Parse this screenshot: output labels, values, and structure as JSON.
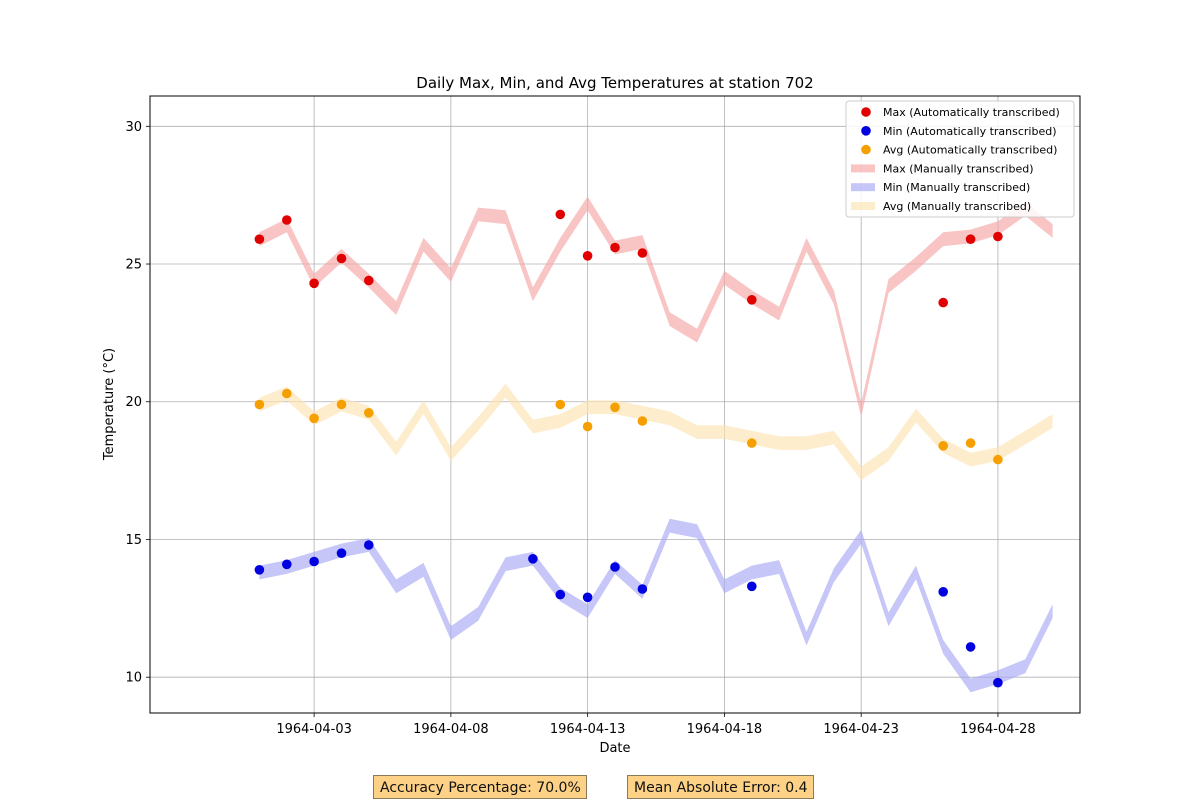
{
  "chart_data": {
    "type": "line",
    "title": "Daily Max, Min, and Avg Temperatures at station 702",
    "xlabel": "Date",
    "ylabel": "Temperature (°C)",
    "xlim": [
      "1964-03-28",
      "1964-05-01"
    ],
    "ylim": [
      8.7,
      31.1
    ],
    "x_ticks": [
      "1964-04-03",
      "1964-04-08",
      "1964-04-13",
      "1964-04-18",
      "1964-04-23",
      "1964-04-28"
    ],
    "y_ticks": [
      10,
      15,
      20,
      25,
      30
    ],
    "grid": true,
    "legend_position": "top-right",
    "manual_dates": [
      "1964-04-01",
      "1964-04-02",
      "1964-04-03",
      "1964-04-04",
      "1964-04-05",
      "1964-04-06",
      "1964-04-07",
      "1964-04-08",
      "1964-04-09",
      "1964-04-10",
      "1964-04-11",
      "1964-04-12",
      "1964-04-13",
      "1964-04-14",
      "1964-04-15",
      "1964-04-16",
      "1964-04-17",
      "1964-04-18",
      "1964-04-19",
      "1964-04-20",
      "1964-04-21",
      "1964-04-22",
      "1964-04-23",
      "1964-04-24",
      "1964-04-25",
      "1964-04-26",
      "1964-04-27",
      "1964-04-28",
      "1964-04-29",
      "1964-04-30"
    ],
    "series": [
      {
        "name": "Max (Automatically transcribed)",
        "kind": "points",
        "color": "#e00000",
        "dates": [
          "1964-04-01",
          "1964-04-02",
          "1964-04-03",
          "1964-04-04",
          "1964-04-05",
          "1964-04-12",
          "1964-04-13",
          "1964-04-14",
          "1964-04-15",
          "1964-04-19",
          "1964-04-26",
          "1964-04-27",
          "1964-04-28"
        ],
        "values": [
          25.9,
          26.6,
          24.3,
          25.2,
          24.4,
          26.8,
          25.3,
          25.6,
          25.4,
          23.7,
          23.6,
          25.9,
          26.0
        ]
      },
      {
        "name": "Min (Automatically transcribed)",
        "kind": "points",
        "color": "#0000e0",
        "dates": [
          "1964-04-01",
          "1964-04-02",
          "1964-04-03",
          "1964-04-04",
          "1964-04-05",
          "1964-04-11",
          "1964-04-12",
          "1964-04-13",
          "1964-04-14",
          "1964-04-15",
          "1964-04-19",
          "1964-04-26",
          "1964-04-27",
          "1964-04-28"
        ],
        "values": [
          13.9,
          14.1,
          14.2,
          14.5,
          14.8,
          14.3,
          13.0,
          12.9,
          14.0,
          13.2,
          13.3,
          13.1,
          11.1,
          9.8
        ]
      },
      {
        "name": "Avg (Automatically transcribed)",
        "kind": "points",
        "color": "#f5a000",
        "dates": [
          "1964-04-01",
          "1964-04-02",
          "1964-04-03",
          "1964-04-04",
          "1964-04-05",
          "1964-04-12",
          "1964-04-13",
          "1964-04-14",
          "1964-04-15",
          "1964-04-19",
          "1964-04-26",
          "1964-04-27",
          "1964-04-28"
        ],
        "values": [
          19.9,
          20.3,
          19.4,
          19.9,
          19.6,
          19.9,
          19.1,
          19.8,
          19.3,
          18.5,
          18.4,
          18.5,
          17.9
        ]
      },
      {
        "name": "Max (Manually transcribed)",
        "kind": "band",
        "color": "#f4a4a4",
        "values": [
          25.9,
          26.4,
          24.4,
          25.3,
          24.4,
          23.4,
          25.7,
          24.6,
          26.8,
          26.7,
          23.9,
          25.7,
          27.2,
          25.6,
          25.8,
          23.0,
          22.4,
          24.5,
          23.8,
          23.2,
          25.7,
          23.8,
          19.7,
          24.2,
          25.0,
          25.9,
          26.0,
          26.3,
          27.0,
          26.2
        ]
      },
      {
        "name": "Min (Manually transcribed)",
        "kind": "band",
        "color": "#a8a8f4",
        "values": [
          13.8,
          14.0,
          14.3,
          14.6,
          14.8,
          13.3,
          13.9,
          11.6,
          12.3,
          14.1,
          14.3,
          13.0,
          12.4,
          14.0,
          13.1,
          15.5,
          15.3,
          13.3,
          13.8,
          14.0,
          11.4,
          13.7,
          15.1,
          12.1,
          13.8,
          11.1,
          9.7,
          10.0,
          10.4,
          12.4
        ]
      },
      {
        "name": "Avg (Manually transcribed)",
        "kind": "band",
        "color": "#fde3b2",
        "values": [
          19.9,
          20.3,
          19.4,
          19.9,
          19.6,
          18.3,
          19.8,
          18.1,
          19.2,
          20.4,
          19.1,
          19.3,
          19.8,
          19.8,
          19.6,
          19.4,
          18.9,
          18.9,
          18.7,
          18.5,
          18.5,
          18.7,
          17.4,
          18.1,
          19.5,
          18.4,
          17.9,
          18.1,
          18.7,
          19.3
        ]
      }
    ]
  },
  "metrics": {
    "accuracy": "Accuracy Percentage: 70.0%",
    "mae": "Mean Absolute Error: 0.4"
  }
}
